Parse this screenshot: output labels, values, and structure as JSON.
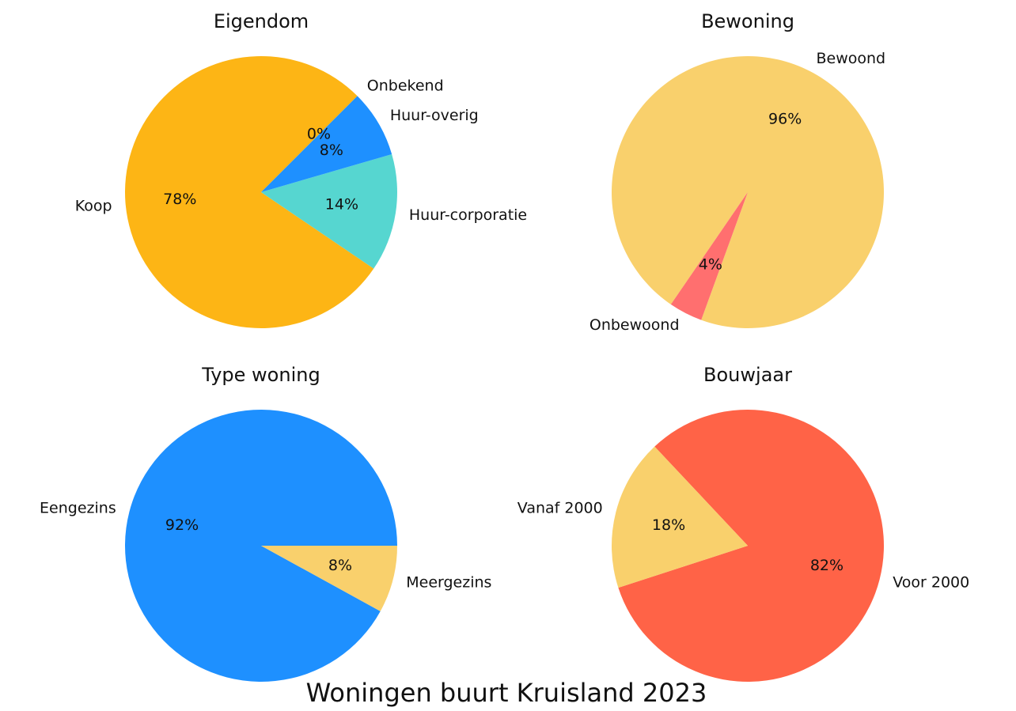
{
  "title": "Woningen buurt Kruisland 2023",
  "chart_data": [
    {
      "type": "pie",
      "title": "Eigendom",
      "categories": [
        "Koop",
        "Huur-corporatie",
        "Huur-overig",
        "Onbekend"
      ],
      "values": [
        78,
        14,
        8,
        0
      ],
      "value_labels": [
        "78%",
        "14%",
        "8%",
        "0%"
      ],
      "colors": [
        "#fdb515",
        "#56d6d0",
        "#1e90ff",
        "#f9d06c"
      ]
    },
    {
      "type": "pie",
      "title": "Bewoning",
      "categories": [
        "Bewoond",
        "Onbewoond"
      ],
      "values": [
        96,
        4
      ],
      "value_labels": [
        "96%",
        "4%"
      ],
      "colors": [
        "#f9d06c",
        "#ff6f6f"
      ]
    },
    {
      "type": "pie",
      "title": "Type woning",
      "categories": [
        "Eengezins",
        "Meergezins"
      ],
      "values": [
        92,
        8
      ],
      "value_labels": [
        "92%",
        "8%"
      ],
      "colors": [
        "#1e90ff",
        "#f9d06c"
      ]
    },
    {
      "type": "pie",
      "title": "Bouwjaar",
      "categories": [
        "Voor 2000",
        "Vanaf 2000"
      ],
      "values": [
        82,
        18
      ],
      "value_labels": [
        "82%",
        "18%"
      ],
      "colors": [
        "#ff6347",
        "#f9d06c"
      ]
    }
  ]
}
